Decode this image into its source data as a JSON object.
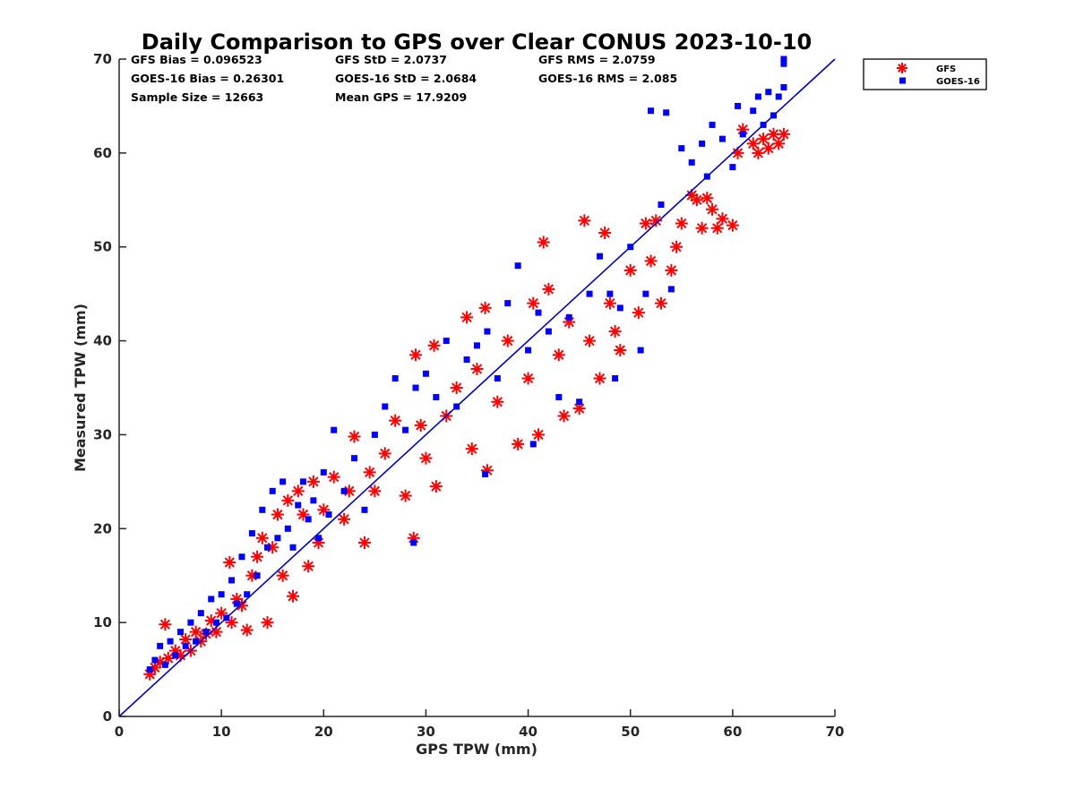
{
  "chart_data": {
    "type": "scatter",
    "title": "Daily Comparison to GPS over Clear CONUS 2023-10-10",
    "xlabel": "GPS TPW (mm)",
    "ylabel": "Measured TPW (mm)",
    "xlim": [
      0,
      70
    ],
    "ylim": [
      0,
      70
    ],
    "x_ticks": [
      "0",
      "10",
      "20",
      "30",
      "40",
      "50",
      "60",
      "70"
    ],
    "y_ticks": [
      "0",
      "10",
      "20",
      "30",
      "40",
      "50",
      "60",
      "70"
    ],
    "grid": false,
    "legend_position": "outside-top-right",
    "reference_line": {
      "name": "1:1 line",
      "color": "#0000cc",
      "from": [
        0,
        0
      ],
      "to": [
        70,
        70
      ]
    },
    "stats": [
      [
        "GFS Bias = 0.096523",
        "GFS StD = 2.0737",
        "GFS RMS = 2.0759"
      ],
      [
        "GOES-16 Bias = 0.26301",
        "GOES-16 StD = 2.0684",
        "GOES-16 RMS = 2.085"
      ],
      [
        "Sample Size = 12663",
        "Mean GPS = 17.9209"
      ]
    ],
    "series": [
      {
        "name": "GFS",
        "marker": "asterisk",
        "color": "#ff0000",
        "points": [
          [
            3.0,
            4.5
          ],
          [
            3.5,
            5.2
          ],
          [
            4.0,
            5.8
          ],
          [
            4.5,
            9.8
          ],
          [
            4.8,
            6.2
          ],
          [
            5.5,
            7.0
          ],
          [
            6.0,
            6.5
          ],
          [
            6.5,
            8.2
          ],
          [
            7.0,
            7.0
          ],
          [
            7.5,
            9.0
          ],
          [
            8.0,
            8.0
          ],
          [
            8.5,
            8.8
          ],
          [
            9.0,
            10.2
          ],
          [
            9.5,
            9.0
          ],
          [
            10.0,
            11.0
          ],
          [
            10.8,
            16.4
          ],
          [
            11.0,
            10.0
          ],
          [
            11.5,
            12.5
          ],
          [
            12.0,
            11.8
          ],
          [
            12.5,
            9.2
          ],
          [
            13.0,
            15.0
          ],
          [
            13.5,
            17.0
          ],
          [
            14.0,
            19.0
          ],
          [
            14.5,
            10.0
          ],
          [
            15.0,
            18.0
          ],
          [
            15.5,
            21.5
          ],
          [
            16.0,
            15.0
          ],
          [
            16.5,
            23.0
          ],
          [
            17.0,
            12.8
          ],
          [
            17.5,
            24.0
          ],
          [
            18.0,
            21.5
          ],
          [
            18.5,
            16.0
          ],
          [
            19.0,
            25.0
          ],
          [
            19.5,
            18.5
          ],
          [
            20.0,
            22.0
          ],
          [
            21.0,
            25.5
          ],
          [
            22.0,
            21.0
          ],
          [
            22.5,
            24.0
          ],
          [
            23.0,
            29.8
          ],
          [
            24.0,
            18.5
          ],
          [
            24.5,
            26.0
          ],
          [
            25.0,
            24.0
          ],
          [
            26.0,
            28.0
          ],
          [
            27.0,
            31.5
          ],
          [
            28.0,
            23.5
          ],
          [
            28.8,
            19.0
          ],
          [
            29.0,
            38.5
          ],
          [
            29.5,
            31.0
          ],
          [
            30.0,
            27.5
          ],
          [
            30.8,
            39.5
          ],
          [
            31.0,
            24.5
          ],
          [
            32.0,
            32.0
          ],
          [
            33.0,
            35.0
          ],
          [
            34.0,
            42.5
          ],
          [
            34.5,
            28.5
          ],
          [
            35.0,
            37.0
          ],
          [
            35.8,
            43.5
          ],
          [
            36.0,
            26.2
          ],
          [
            37.0,
            33.5
          ],
          [
            38.0,
            40.0
          ],
          [
            39.0,
            29.0
          ],
          [
            40.0,
            36.0
          ],
          [
            40.5,
            44.0
          ],
          [
            41.0,
            30.0
          ],
          [
            41.5,
            50.5
          ],
          [
            42.0,
            45.5
          ],
          [
            43.0,
            38.5
          ],
          [
            43.5,
            32.0
          ],
          [
            44.0,
            42.0
          ],
          [
            45.0,
            32.8
          ],
          [
            45.5,
            52.8
          ],
          [
            46.0,
            40.0
          ],
          [
            47.0,
            36.0
          ],
          [
            47.5,
            51.5
          ],
          [
            48.0,
            44.0
          ],
          [
            48.5,
            41.0
          ],
          [
            49.0,
            39.0
          ],
          [
            50.0,
            47.5
          ],
          [
            50.8,
            43.0
          ],
          [
            51.5,
            52.5
          ],
          [
            52.0,
            48.5
          ],
          [
            52.5,
            52.8
          ],
          [
            53.0,
            44.0
          ],
          [
            54.0,
            47.5
          ],
          [
            54.5,
            50.0
          ],
          [
            55.0,
            52.5
          ],
          [
            56.0,
            55.5
          ],
          [
            56.5,
            55.0
          ],
          [
            57.0,
            52.0
          ],
          [
            57.5,
            55.2
          ],
          [
            58.0,
            54.0
          ],
          [
            58.5,
            52.0
          ],
          [
            59.0,
            53.0
          ],
          [
            60.0,
            52.3
          ],
          [
            60.5,
            60.0
          ],
          [
            61.0,
            62.5
          ],
          [
            62.0,
            61.0
          ],
          [
            62.5,
            60.0
          ],
          [
            63.0,
            61.5
          ],
          [
            63.5,
            60.5
          ],
          [
            64.0,
            62.0
          ],
          [
            64.5,
            61.0
          ],
          [
            65.0,
            62.0
          ]
        ]
      },
      {
        "name": "GOES-16",
        "marker": "square",
        "color": "#0000ff",
        "points": [
          [
            3.0,
            5.0
          ],
          [
            3.5,
            6.0
          ],
          [
            4.0,
            7.5
          ],
          [
            4.5,
            5.5
          ],
          [
            5.0,
            8.0
          ],
          [
            5.5,
            6.5
          ],
          [
            6.0,
            9.0
          ],
          [
            6.5,
            7.5
          ],
          [
            7.0,
            10.0
          ],
          [
            7.5,
            8.0
          ],
          [
            8.0,
            11.0
          ],
          [
            8.5,
            9.0
          ],
          [
            9.0,
            12.5
          ],
          [
            9.5,
            10.0
          ],
          [
            10.0,
            13.0
          ],
          [
            10.5,
            10.5
          ],
          [
            11.0,
            14.5
          ],
          [
            11.5,
            12.0
          ],
          [
            12.0,
            17.0
          ],
          [
            12.5,
            13.0
          ],
          [
            13.0,
            19.5
          ],
          [
            13.5,
            15.0
          ],
          [
            14.0,
            22.0
          ],
          [
            14.5,
            18.0
          ],
          [
            15.0,
            24.0
          ],
          [
            15.5,
            19.0
          ],
          [
            16.0,
            25.0
          ],
          [
            16.5,
            20.0
          ],
          [
            17.0,
            18.0
          ],
          [
            17.5,
            22.5
          ],
          [
            18.0,
            25.0
          ],
          [
            18.5,
            21.0
          ],
          [
            19.0,
            23.0
          ],
          [
            19.5,
            19.0
          ],
          [
            20.0,
            26.0
          ],
          [
            20.5,
            21.5
          ],
          [
            21.0,
            30.5
          ],
          [
            22.0,
            24.0
          ],
          [
            23.0,
            27.5
          ],
          [
            24.0,
            22.0
          ],
          [
            25.0,
            30.0
          ],
          [
            26.0,
            33.0
          ],
          [
            27.0,
            36.0
          ],
          [
            28.0,
            30.5
          ],
          [
            28.8,
            18.5
          ],
          [
            29.0,
            35.0
          ],
          [
            30.0,
            36.5
          ],
          [
            31.0,
            34.0
          ],
          [
            32.0,
            40.0
          ],
          [
            33.0,
            33.0
          ],
          [
            34.0,
            38.0
          ],
          [
            35.0,
            39.5
          ],
          [
            35.8,
            25.8
          ],
          [
            36.0,
            41.0
          ],
          [
            37.0,
            36.0
          ],
          [
            38.0,
            44.0
          ],
          [
            39.0,
            48.0
          ],
          [
            40.0,
            39.0
          ],
          [
            40.5,
            29.0
          ],
          [
            41.0,
            43.0
          ],
          [
            42.0,
            41.0
          ],
          [
            43.0,
            34.0
          ],
          [
            44.0,
            42.5
          ],
          [
            45.0,
            33.5
          ],
          [
            46.0,
            45.0
          ],
          [
            47.0,
            49.0
          ],
          [
            48.0,
            45.0
          ],
          [
            48.5,
            36.0
          ],
          [
            49.0,
            43.5
          ],
          [
            50.0,
            50.0
          ],
          [
            51.0,
            39.0
          ],
          [
            51.5,
            45.0
          ],
          [
            52.0,
            64.5
          ],
          [
            53.0,
            54.5
          ],
          [
            53.5,
            64.3
          ],
          [
            54.0,
            45.5
          ],
          [
            55.0,
            60.5
          ],
          [
            56.0,
            59.0
          ],
          [
            57.0,
            61.0
          ],
          [
            57.5,
            57.5
          ],
          [
            58.0,
            63.0
          ],
          [
            59.0,
            61.5
          ],
          [
            60.0,
            58.5
          ],
          [
            60.5,
            65.0
          ],
          [
            61.0,
            62.0
          ],
          [
            62.0,
            64.5
          ],
          [
            62.5,
            66.0
          ],
          [
            63.0,
            63.0
          ],
          [
            63.5,
            66.5
          ],
          [
            64.0,
            64.0
          ],
          [
            64.5,
            66.0
          ],
          [
            65.0,
            70.0
          ],
          [
            65.0,
            67.0
          ],
          [
            65.0,
            69.5
          ]
        ]
      }
    ]
  }
}
